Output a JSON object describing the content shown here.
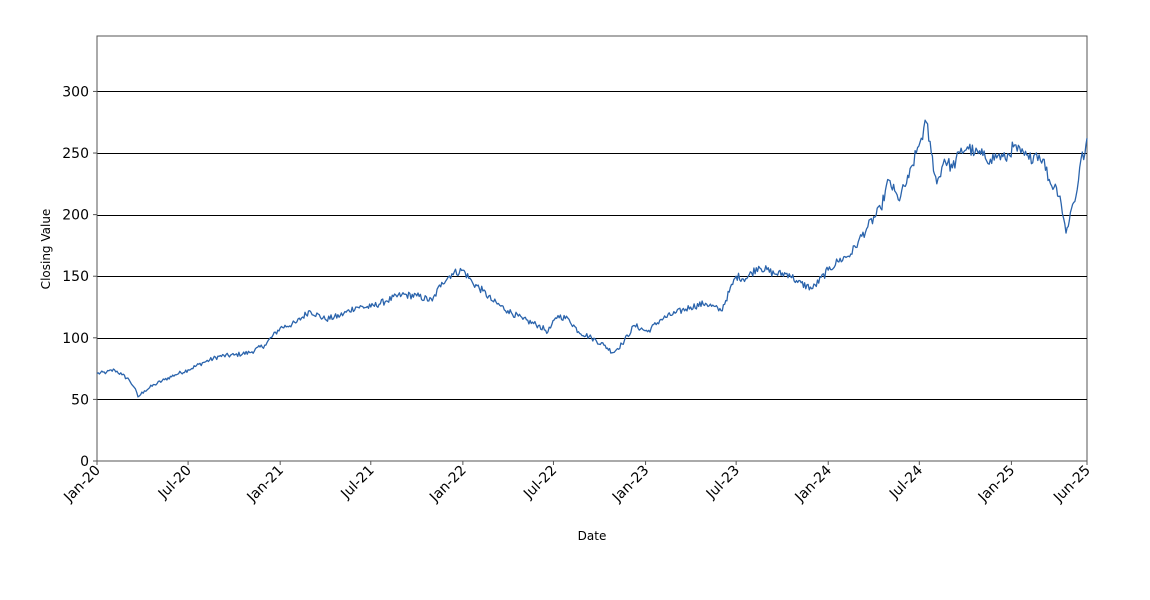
{
  "chart_data": {
    "type": "line",
    "title": "",
    "xlabel": "Date",
    "ylabel": "Closing Value",
    "ylim": [
      0,
      345
    ],
    "xlim": [
      "2020-01-01",
      "2025-06-01"
    ],
    "grid": {
      "horizontal": true,
      "vertical": false
    },
    "y_ticks": [
      0,
      50,
      100,
      150,
      200,
      250,
      300
    ],
    "y_tick_labels": [
      "0",
      "50",
      "100",
      "150",
      "200",
      "250",
      "300"
    ],
    "x_ticks": [
      "2020-01-01",
      "2020-07-01",
      "2021-01-01",
      "2021-07-01",
      "2022-01-01",
      "2022-07-01",
      "2023-01-01",
      "2023-07-01",
      "2024-01-01",
      "2024-07-01",
      "2025-01-01",
      "2025-06-01"
    ],
    "x_tick_labels": [
      "Jan-20",
      "Jul-20",
      "Jan-21",
      "Jul-21",
      "Jan-22",
      "Jul-22",
      "Jan-23",
      "Jul-23",
      "Jan-24",
      "Jul-24",
      "Jan-25",
      "Jun-25"
    ],
    "colors": {
      "series": "#2b64ac"
    },
    "series": [
      {
        "name": "",
        "x": [
          "2020-01-01",
          "2020-01-20",
          "2020-02-05",
          "2020-02-20",
          "2020-03-05",
          "2020-03-15",
          "2020-03-23",
          "2020-04-05",
          "2020-04-25",
          "2020-05-15",
          "2020-06-05",
          "2020-07-01",
          "2020-08-01",
          "2020-09-01",
          "2020-10-01",
          "2020-11-01",
          "2020-12-01",
          "2021-01-01",
          "2021-02-01",
          "2021-03-01",
          "2021-04-01",
          "2021-05-01",
          "2021-06-01",
          "2021-07-01",
          "2021-08-01",
          "2021-09-01",
          "2021-10-01",
          "2021-11-01",
          "2021-11-20",
          "2021-12-10",
          "2022-01-01",
          "2022-01-20",
          "2022-02-10",
          "2022-03-01",
          "2022-04-01",
          "2022-05-01",
          "2022-06-01",
          "2022-06-20",
          "2022-07-10",
          "2022-08-01",
          "2022-08-20",
          "2022-09-15",
          "2022-10-10",
          "2022-10-28",
          "2022-11-15",
          "2022-12-10",
          "2023-01-05",
          "2023-02-01",
          "2023-03-01",
          "2023-04-01",
          "2023-05-01",
          "2023-06-01",
          "2023-07-01",
          "2023-07-20",
          "2023-08-15",
          "2023-09-15",
          "2023-10-15",
          "2023-11-01",
          "2023-12-01",
          "2024-01-01",
          "2024-01-20",
          "2024-02-15",
          "2024-03-01",
          "2024-03-20",
          "2024-04-15",
          "2024-05-01",
          "2024-05-20",
          "2024-06-10",
          "2024-06-25",
          "2024-07-05",
          "2024-07-15",
          "2024-07-25",
          "2024-08-05",
          "2024-08-20",
          "2024-09-05",
          "2024-09-20",
          "2024-10-05",
          "2024-10-20",
          "2024-11-05",
          "2024-11-20",
          "2024-12-05",
          "2024-12-20",
          "2025-01-05",
          "2025-01-20",
          "2025-02-05",
          "2025-02-20",
          "2025-03-05",
          "2025-03-20",
          "2025-04-01",
          "2025-04-08",
          "2025-04-20",
          "2025-05-01",
          "2025-05-10",
          "2025-05-20",
          "2025-05-28",
          "2025-06-01"
        ],
        "y": [
          71,
          72,
          74,
          70,
          66,
          60,
          52,
          57,
          62,
          66,
          70,
          74,
          80,
          85,
          86,
          88,
          94,
          108,
          112,
          122,
          115,
          118,
          125,
          125,
          130,
          135,
          134,
          130,
          145,
          152,
          155,
          145,
          138,
          130,
          122,
          115,
          110,
          105,
          118,
          115,
          105,
          100,
          94,
          88,
          95,
          110,
          105,
          115,
          120,
          125,
          128,
          122,
          150,
          148,
          158,
          152,
          152,
          145,
          140,
          155,
          162,
          168,
          178,
          190,
          205,
          228,
          212,
          230,
          250,
          262,
          275,
          250,
          225,
          245,
          238,
          250,
          255,
          250,
          248,
          245,
          248,
          245,
          255,
          250,
          245,
          250,
          245,
          225,
          222,
          215,
          185,
          205,
          215,
          245,
          250,
          262
        ]
      }
    ]
  }
}
